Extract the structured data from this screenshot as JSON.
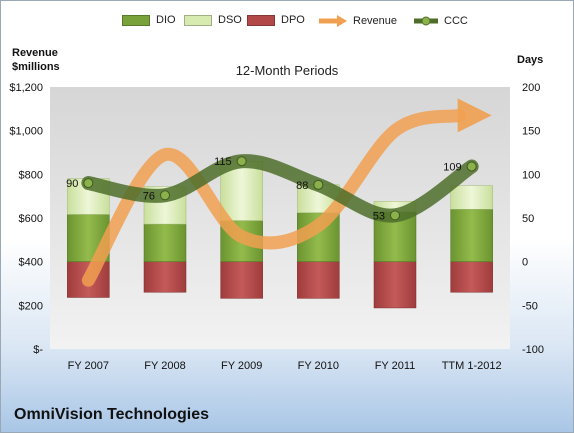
{
  "chart_data": {
    "type": "bar",
    "subtitle": "12-Month Periods",
    "company": "OmniVision Technologies",
    "categories": [
      "FY 2007",
      "FY 2008",
      "FY 2009",
      "FY 2010",
      "FY 2011",
      "TTM 1-2012"
    ],
    "left_axis": {
      "label_line1": "Revenue",
      "label_line2": "$millions",
      "ylim": [
        0,
        1200
      ],
      "ticks": [
        "$-",
        "$200",
        "$400",
        "$600",
        "$800",
        "$1,000",
        "$1,200"
      ]
    },
    "right_axis": {
      "label": "Days",
      "ylim": [
        -100,
        200
      ],
      "ticks": [
        "-100",
        "-50",
        "0",
        "50",
        "100",
        "150",
        "200"
      ]
    },
    "series": [
      {
        "name": "DIO",
        "color": "#7aa23a",
        "values": [
          54,
          43,
          47,
          56,
          57,
          60
        ]
      },
      {
        "name": "DSO",
        "color": "#d7eab0",
        "values": [
          41,
          43,
          68,
          32,
          12,
          27
        ]
      },
      {
        "name": "DPO",
        "color": "#b24848",
        "values": [
          -41,
          -35,
          -42,
          -42,
          -53,
          -35
        ]
      },
      {
        "name": "Revenue",
        "color": "#f0a050",
        "values": [
          315,
          890,
          515,
          565,
          1000,
          1070
        ]
      },
      {
        "name": "CCC",
        "color": "#4e6e2a",
        "values": [
          90,
          76,
          115,
          88,
          53,
          109
        ]
      }
    ],
    "ccc_labels": [
      "90",
      "76",
      "115",
      "88",
      "53",
      "109"
    ],
    "grid": false,
    "legend": "top"
  }
}
